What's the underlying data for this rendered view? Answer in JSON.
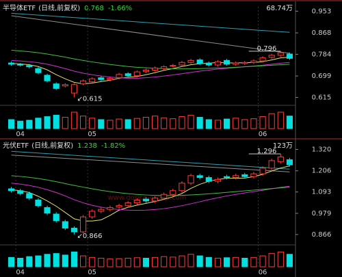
{
  "chart_data": [
    {
      "type": "candlestick",
      "title": "半导体ETF",
      "subtitle": "(日线,前复权)",
      "price": "0.768",
      "change": "-1.66%",
      "volume_label": "68.74万",
      "up_color": "#ff3c3c",
      "down_color": "#00e0e0",
      "categories": [
        null,
        "04",
        null,
        null,
        null,
        null,
        null,
        null,
        null,
        "05",
        null,
        null,
        null,
        null,
        null,
        null,
        null,
        null,
        null,
        null,
        null,
        null,
        null,
        null,
        null,
        null,
        null,
        null,
        "06",
        null,
        null,
        null
      ],
      "open": [
        0.75,
        0.744,
        0.74,
        0.728,
        0.702,
        0.668,
        0.66,
        0.632,
        0.668,
        0.676,
        0.692,
        0.684,
        0.692,
        0.708,
        0.7,
        0.716,
        0.722,
        0.728,
        0.738,
        0.742,
        0.752,
        0.762,
        0.75,
        0.742,
        0.76,
        0.745,
        0.748,
        0.752,
        0.758,
        0.772,
        0.78,
        0.785
      ],
      "high": [
        0.756,
        0.75,
        0.746,
        0.734,
        0.708,
        0.674,
        0.671,
        0.671,
        0.686,
        0.694,
        0.698,
        0.696,
        0.711,
        0.714,
        0.721,
        0.728,
        0.736,
        0.741,
        0.746,
        0.758,
        0.766,
        0.768,
        0.756,
        0.761,
        0.766,
        0.756,
        0.758,
        0.764,
        0.776,
        0.786,
        0.796,
        0.791
      ],
      "low": [
        0.739,
        0.736,
        0.729,
        0.706,
        0.674,
        0.644,
        0.654,
        0.615,
        0.662,
        0.67,
        0.679,
        0.678,
        0.686,
        0.694,
        0.694,
        0.71,
        0.716,
        0.722,
        0.732,
        0.736,
        0.746,
        0.742,
        0.736,
        0.736,
        0.739,
        0.739,
        0.742,
        0.746,
        0.752,
        0.766,
        0.774,
        0.762
      ],
      "close": [
        0.745,
        0.742,
        0.735,
        0.712,
        0.68,
        0.65,
        0.665,
        0.665,
        0.68,
        0.688,
        0.685,
        0.69,
        0.705,
        0.7,
        0.715,
        0.722,
        0.73,
        0.735,
        0.74,
        0.752,
        0.76,
        0.748,
        0.742,
        0.755,
        0.745,
        0.75,
        0.752,
        0.758,
        0.77,
        0.78,
        0.79,
        0.768
      ],
      "volume": [
        30,
        25,
        28,
        35,
        40,
        45,
        38,
        55,
        42,
        35,
        30,
        28,
        32,
        30,
        34,
        38,
        42,
        36,
        33,
        40,
        45,
        38,
        30,
        28,
        32,
        35,
        30,
        33,
        40,
        50,
        55,
        42
      ],
      "volume_ylim": [
        0,
        68.74
      ],
      "ylim": [
        0.6,
        0.97
      ],
      "yticks": [
        0.953,
        0.868,
        0.784,
        0.699,
        0.615
      ],
      "ma_series": [
        {
          "color": "#e8e070",
          "values": [
            0.748,
            0.746,
            0.743,
            0.736,
            0.723,
            0.704,
            0.688,
            0.674,
            0.668,
            0.671,
            0.677,
            0.682,
            0.69,
            0.694,
            0.697,
            0.704,
            0.712,
            0.721,
            0.728,
            0.736,
            0.743,
            0.747,
            0.749,
            0.752,
            0.75,
            0.75,
            0.751,
            0.752,
            0.755,
            0.762,
            0.77,
            0.773
          ]
        },
        {
          "color": "#d030d0",
          "values": [
            0.76,
            0.758,
            0.755,
            0.751,
            0.745,
            0.737,
            0.728,
            0.718,
            0.71,
            0.704,
            0.699,
            0.695,
            0.692,
            0.69,
            0.69,
            0.692,
            0.695,
            0.699,
            0.703,
            0.708,
            0.713,
            0.718,
            0.722,
            0.726,
            0.729,
            0.732,
            0.735,
            0.738,
            0.741,
            0.745,
            0.749,
            0.752
          ]
        },
        {
          "color": "#40c040",
          "values": [
            0.8,
            0.797,
            0.794,
            0.79,
            0.785,
            0.779,
            0.773,
            0.766,
            0.76,
            0.754,
            0.749,
            0.744,
            0.74,
            0.736,
            0.733,
            0.731,
            0.729,
            0.728,
            0.727,
            0.727,
            0.727,
            0.728,
            0.729,
            0.73,
            0.731,
            0.733,
            0.735,
            0.737,
            0.739,
            0.741,
            0.743,
            0.745
          ]
        }
      ],
      "trend_lines": [
        {
          "color": "#30a0b0",
          "x": [
            0,
            31
          ],
          "values": [
            0.945,
            0.87
          ]
        },
        {
          "color": "#909090",
          "x": [
            0,
            31
          ],
          "values": [
            0.935,
            0.788
          ]
        }
      ],
      "low_label": "↙0.615",
      "high_label": "0.796"
    },
    {
      "type": "candlestick",
      "title": "光伏ETF",
      "subtitle": "(日线,前复权)",
      "price": "1.238",
      "change": "-1.82%",
      "volume_label": "123万",
      "up_color": "#ff3c3c",
      "down_color": "#00e0e0",
      "categories": [
        null,
        "04",
        null,
        null,
        null,
        null,
        null,
        null,
        null,
        "05",
        null,
        null,
        null,
        null,
        null,
        null,
        null,
        null,
        null,
        null,
        null,
        null,
        null,
        null,
        null,
        null,
        null,
        null,
        "06",
        null,
        null,
        null
      ],
      "open": [
        1.11,
        1.1,
        1.085,
        1.05,
        1.01,
        0.975,
        0.935,
        0.9,
        0.88,
        0.96,
        0.99,
        1.0,
        1.012,
        1.02,
        1.035,
        1.055,
        1.045,
        1.06,
        1.08,
        1.1,
        1.14,
        1.18,
        1.17,
        1.15,
        1.175,
        1.17,
        1.185,
        1.175,
        1.19,
        1.22,
        1.255,
        1.265
      ],
      "high": [
        1.12,
        1.11,
        1.095,
        1.06,
        1.02,
        0.985,
        0.945,
        0.91,
        0.97,
        1.0,
        1.01,
        1.02,
        1.03,
        1.045,
        1.06,
        1.065,
        1.07,
        1.09,
        1.11,
        1.15,
        1.19,
        1.19,
        1.18,
        1.17,
        1.185,
        1.19,
        1.195,
        1.2,
        1.23,
        1.27,
        1.296,
        1.275
      ],
      "low": [
        1.09,
        1.075,
        1.05,
        1.01,
        0.97,
        0.93,
        0.89,
        0.866,
        0.87,
        0.95,
        0.98,
        0.99,
        1.002,
        1.01,
        1.025,
        1.035,
        1.035,
        1.05,
        1.07,
        1.09,
        1.13,
        1.16,
        1.14,
        1.14,
        1.16,
        1.16,
        1.165,
        1.165,
        1.18,
        1.21,
        1.245,
        1.228
      ],
      "close": [
        1.1,
        1.085,
        1.06,
        1.02,
        0.98,
        0.94,
        0.9,
        0.88,
        0.96,
        0.99,
        1.0,
        1.01,
        1.02,
        1.035,
        1.05,
        1.045,
        1.06,
        1.08,
        1.1,
        1.14,
        1.18,
        1.17,
        1.15,
        1.16,
        1.17,
        1.18,
        1.175,
        1.19,
        1.22,
        1.26,
        1.28,
        1.238
      ],
      "volume": [
        60,
        55,
        65,
        70,
        80,
        85,
        75,
        95,
        70,
        60,
        55,
        50,
        52,
        55,
        58,
        55,
        60,
        65,
        62,
        70,
        80,
        70,
        60,
        55,
        58,
        60,
        55,
        60,
        70,
        85,
        95,
        80
      ],
      "volume_ylim": [
        0,
        123
      ],
      "ylim": [
        0.84,
        1.34
      ],
      "yticks": [
        {
          "value": 1.32,
          "label": "1.320"
        },
        1.206,
        1.093,
        0.979,
        0.866
      ],
      "ma_series": [
        {
          "color": "#e8e070",
          "values": [
            1.105,
            1.1,
            1.09,
            1.07,
            1.045,
            1.017,
            0.984,
            0.95,
            0.938,
            0.938,
            0.944,
            0.968,
            0.996,
            1.011,
            1.023,
            1.032,
            1.042,
            1.054,
            1.067,
            1.085,
            1.112,
            1.134,
            1.15,
            1.16,
            1.166,
            1.166,
            1.167,
            1.175,
            1.187,
            1.205,
            1.221,
            1.232
          ]
        },
        {
          "color": "#d030d0",
          "values": [
            1.14,
            1.135,
            1.128,
            1.118,
            1.105,
            1.09,
            1.072,
            1.052,
            1.035,
            1.022,
            1.012,
            1.004,
            0.999,
            0.996,
            0.995,
            0.996,
            0.999,
            1.004,
            1.011,
            1.02,
            1.03,
            1.041,
            1.052,
            1.062,
            1.072,
            1.08,
            1.088,
            1.095,
            1.102,
            1.11,
            1.118,
            1.124
          ]
        },
        {
          "color": "#40c040",
          "values": [
            1.18,
            1.176,
            1.171,
            1.165,
            1.157,
            1.148,
            1.138,
            1.128,
            1.119,
            1.11,
            1.102,
            1.095,
            1.089,
            1.084,
            1.08,
            1.077,
            1.075,
            1.074,
            1.074,
            1.075,
            1.077,
            1.08,
            1.083,
            1.087,
            1.091,
            1.095,
            1.099,
            1.103,
            1.107,
            1.111,
            1.115,
            1.119
          ]
        }
      ],
      "trend_lines": [
        {
          "color": "#30a0b0",
          "x": [
            0,
            31
          ],
          "values": [
            1.31,
            1.215
          ]
        },
        {
          "color": "#909090",
          "x": [
            0,
            31
          ],
          "values": [
            1.29,
            1.2
          ]
        }
      ],
      "low_label": "↙0.866",
      "high_label": "1.296",
      "watermark": "www.dorice-group.com"
    }
  ]
}
